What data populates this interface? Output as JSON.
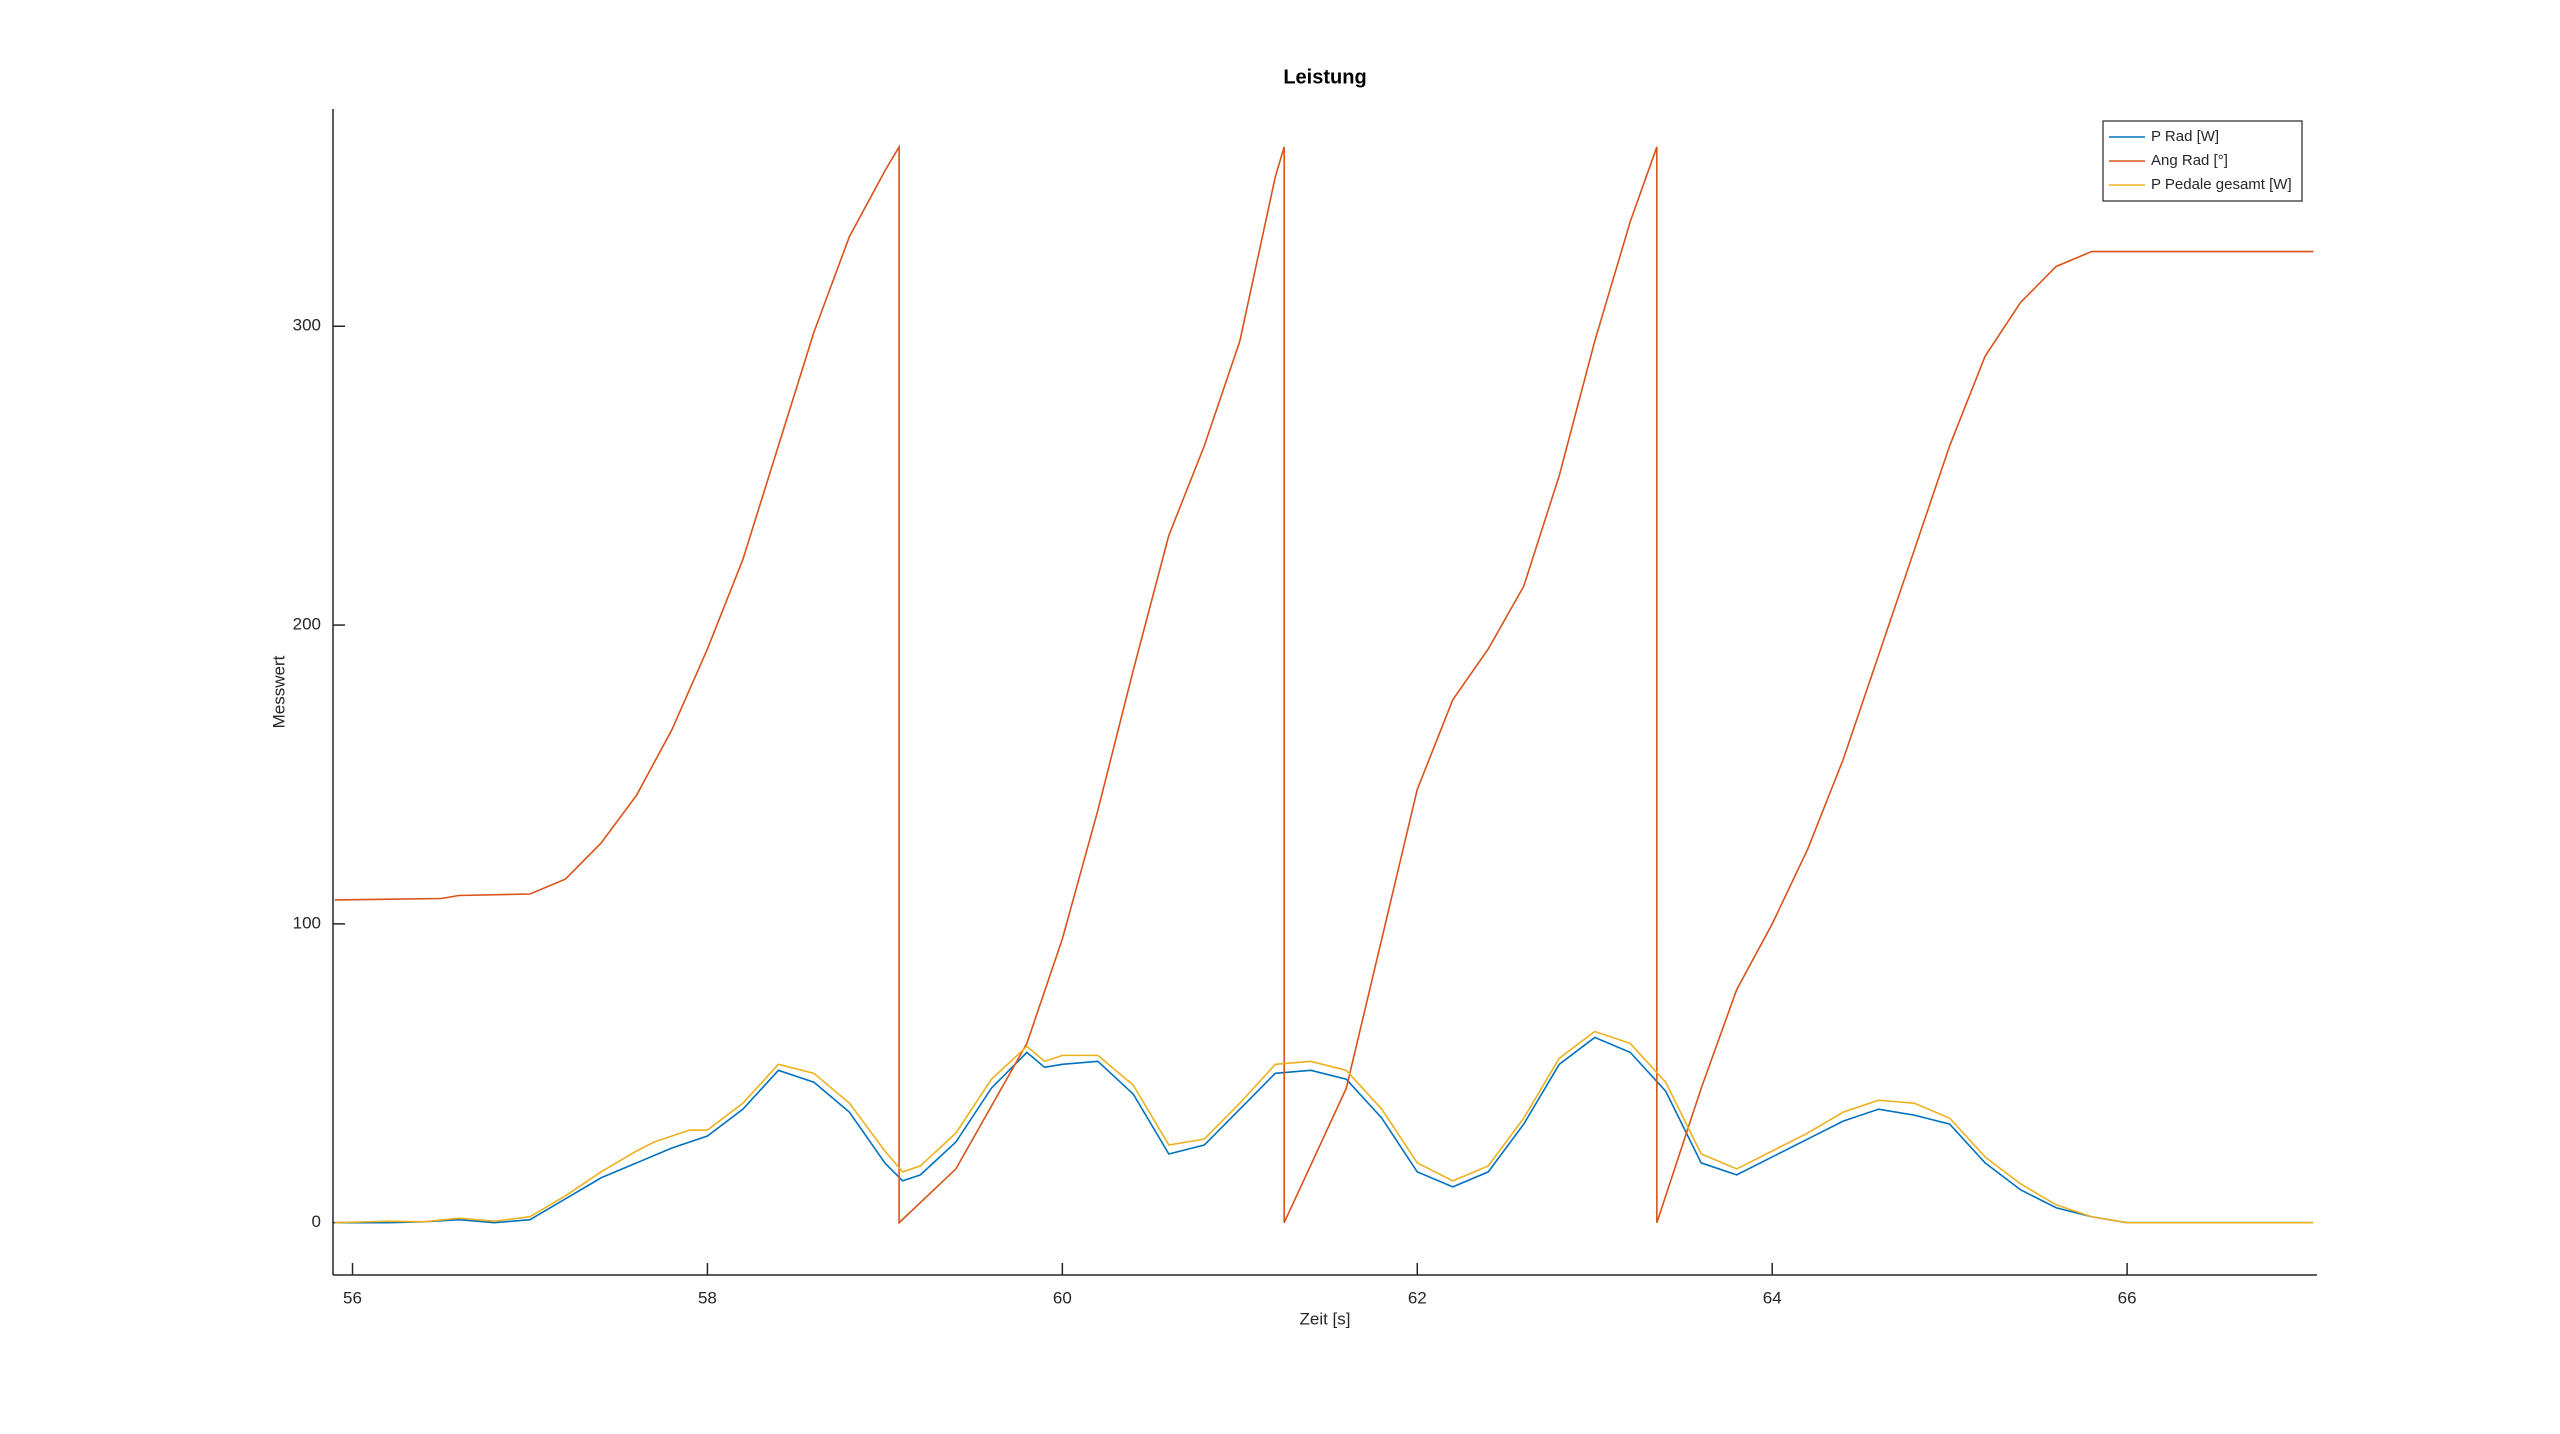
{
  "chart_data": {
    "type": "line",
    "title": "Leistung",
    "x_label": "Zeit [s]",
    "y_label": "Messwert",
    "xlim": [
      55.89,
      67.07
    ],
    "ylim": [
      -17.5,
      372.7
    ],
    "xticks": [
      56,
      58,
      60,
      62,
      64,
      66
    ],
    "yticks": [
      0,
      100,
      200,
      300
    ],
    "legend": "upper right",
    "series": [
      {
        "name": "P Rad [W]",
        "color": "#0072bd",
        "x": [
          55.9,
          56.2,
          56.4,
          56.6,
          56.8,
          57.0,
          57.2,
          57.4,
          57.6,
          57.8,
          58.0,
          58.2,
          58.4,
          58.6,
          58.8,
          59.0,
          59.1,
          59.2,
          59.4,
          59.6,
          59.8,
          59.9,
          60.0,
          60.2,
          60.4,
          60.6,
          60.8,
          61.0,
          61.2,
          61.4,
          61.6,
          61.8,
          62.0,
          62.2,
          62.4,
          62.6,
          62.8,
          63.0,
          63.2,
          63.4,
          63.6,
          63.8,
          64.0,
          64.2,
          64.4,
          64.6,
          64.8,
          65.0,
          65.2,
          65.4,
          65.6,
          65.8,
          66.0,
          66.5,
          67.05
        ],
        "values": [
          0,
          0,
          0.3,
          1,
          0,
          1,
          8,
          15,
          20,
          25,
          29,
          38,
          51,
          47,
          37,
          20,
          14,
          16,
          27,
          45,
          57,
          52,
          53,
          54,
          43,
          23,
          26,
          38,
          50,
          51,
          48,
          35,
          17,
          12,
          17,
          33,
          53,
          62,
          57,
          44,
          20,
          16,
          22,
          28,
          34,
          38,
          36,
          33,
          20,
          11,
          5,
          2,
          0,
          0,
          0
        ]
      },
      {
        "name": "Ang Rad [°]",
        "color": "#d95319",
        "x": [
          55.9,
          56.5,
          56.6,
          57.0,
          57.2,
          57.4,
          57.6,
          57.8,
          58.0,
          58.2,
          58.4,
          58.6,
          58.8,
          59.0,
          59.08,
          59.08,
          59.4,
          59.8,
          60.0,
          60.2,
          60.4,
          60.6,
          60.8,
          61.0,
          61.2,
          61.25,
          61.25,
          61.6,
          61.8,
          62.0,
          62.2,
          62.4,
          62.6,
          62.8,
          63.0,
          63.2,
          63.35,
          63.35,
          63.6,
          63.8,
          64.0,
          64.2,
          64.4,
          64.6,
          64.8,
          65.0,
          65.2,
          65.4,
          65.6,
          65.8,
          66.0,
          67.05
        ],
        "values": [
          108,
          108.5,
          109.5,
          110,
          115,
          127,
          143,
          165,
          192,
          222,
          260,
          298,
          330,
          352,
          360,
          0,
          18,
          60,
          95,
          138,
          185,
          230,
          260,
          295,
          350,
          360,
          0,
          45,
          95,
          145,
          175,
          192,
          213,
          250,
          295,
          335,
          360,
          0,
          45,
          78,
          100,
          125,
          155,
          190,
          225,
          260,
          290,
          308,
          320,
          325,
          325,
          325
        ]
      },
      {
        "name": "P Pedale gesamt [W]",
        "color": "#edb120",
        "x": [
          55.9,
          56.2,
          56.4,
          56.6,
          56.8,
          57.0,
          57.2,
          57.4,
          57.6,
          57.7,
          57.8,
          57.9,
          58.0,
          58.2,
          58.4,
          58.6,
          58.8,
          59.0,
          59.1,
          59.2,
          59.4,
          59.6,
          59.8,
          59.9,
          60.0,
          60.2,
          60.4,
          60.6,
          60.8,
          61.0,
          61.2,
          61.4,
          61.6,
          61.8,
          62.0,
          62.2,
          62.4,
          62.6,
          62.8,
          63.0,
          63.2,
          63.4,
          63.6,
          63.8,
          64.0,
          64.2,
          64.4,
          64.6,
          64.8,
          65.0,
          65.2,
          65.4,
          65.6,
          65.8,
          66.0,
          66.5,
          67.05
        ],
        "values": [
          0,
          0.5,
          0.3,
          1.5,
          0.5,
          2,
          9,
          17,
          24,
          27,
          29,
          31,
          31,
          40,
          53,
          50,
          40,
          24,
          17,
          19,
          30,
          48,
          59,
          54,
          56,
          56,
          46,
          26,
          28,
          40,
          53,
          54,
          51,
          38,
          20,
          14,
          19,
          35,
          55,
          64,
          60,
          47,
          23,
          18,
          24,
          30,
          37,
          41,
          40,
          35,
          22,
          13,
          6,
          2,
          0,
          0,
          0
        ]
      }
    ]
  }
}
